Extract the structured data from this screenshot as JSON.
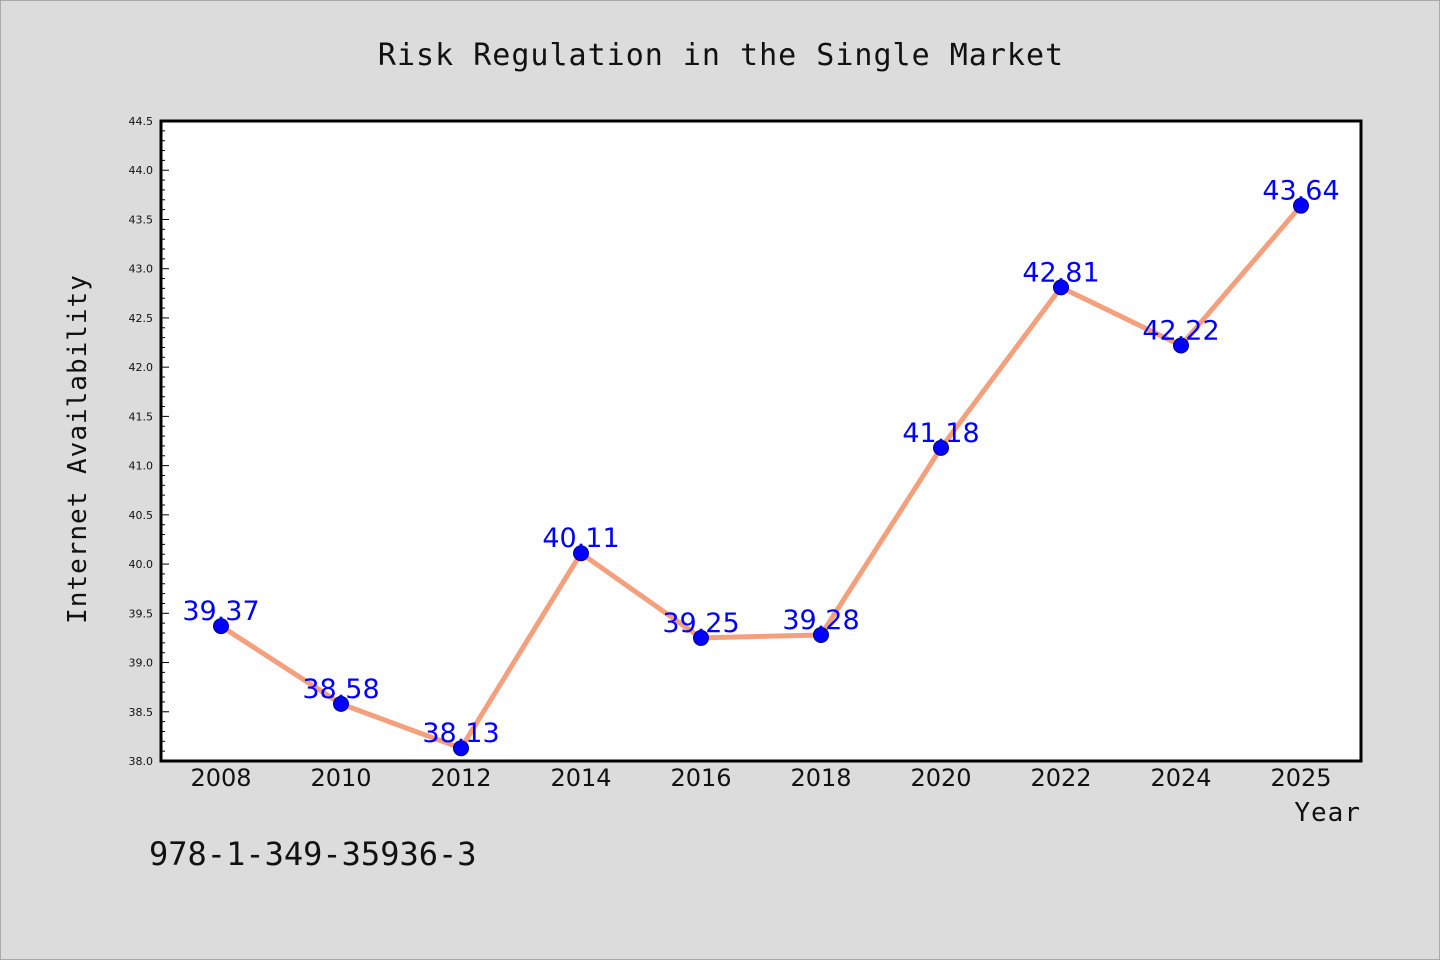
{
  "chart_data": {
    "type": "line",
    "title": "Risk Regulation in the Single Market",
    "xlabel": "Year",
    "ylabel": "Internet Availability",
    "categories": [
      "2008",
      "2010",
      "2012",
      "2014",
      "2016",
      "2018",
      "2020",
      "2022",
      "2024",
      "2025"
    ],
    "series": [
      {
        "values": [
          39.37,
          38.58,
          38.13,
          40.11,
          39.25,
          39.28,
          41.18,
          42.81,
          42.22,
          43.64
        ]
      }
    ],
    "data_labels": [
      "39.37",
      "38.58",
      "38.13",
      "40.11",
      "39.25",
      "39.28",
      "41.18",
      "42.81",
      "42.22",
      "43.64"
    ],
    "ylim": [
      38.0,
      44.5
    ],
    "ytick_labels": [
      "38.0",
      "38.5",
      "39.0",
      "39.5",
      "40.0",
      "40.5",
      "41.0",
      "41.5",
      "42.0",
      "42.5",
      "43.0",
      "43.5",
      "44.0",
      "44.5"
    ],
    "grid": false,
    "legend": "none",
    "colors": {
      "line": "#f4a07c",
      "marker": "#0000ff",
      "label": "#0000ff",
      "background": "#dcdcdc",
      "plot_background": "#ffffff"
    }
  },
  "footer": {
    "isbn": "978-1-349-35936-3"
  }
}
